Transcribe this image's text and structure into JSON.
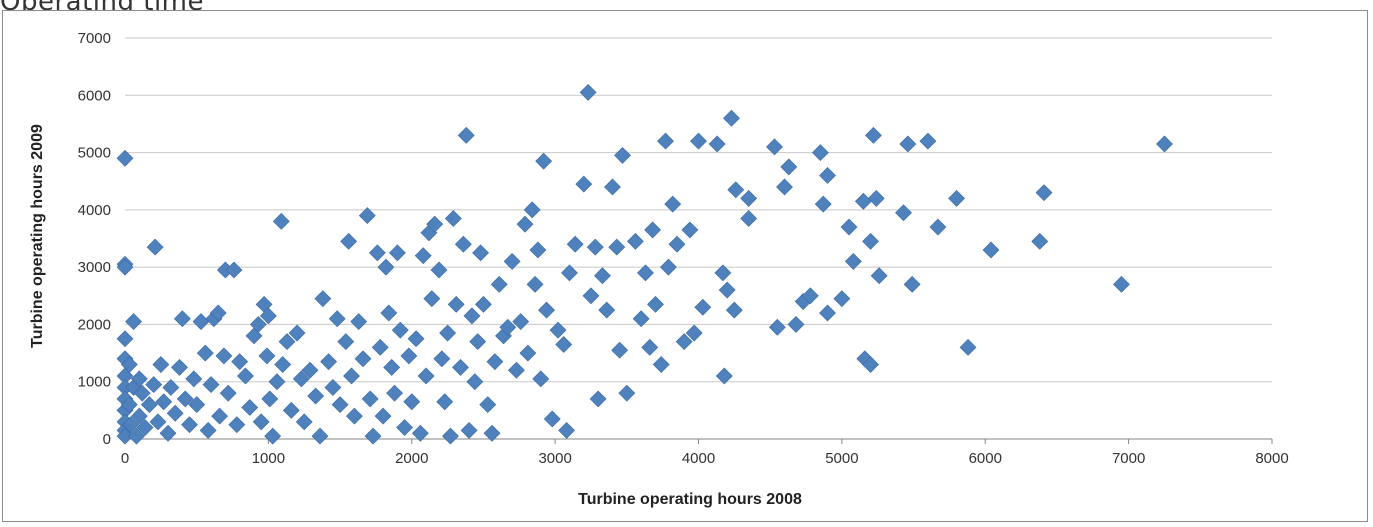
{
  "page": {
    "title": "Operating time"
  },
  "chart_data": {
    "type": "scatter",
    "xlabel": "Turbine operating hours 2008",
    "ylabel": "Turbine operating hours 2009",
    "xlim": [
      0,
      8000
    ],
    "ylim": [
      0,
      7000
    ],
    "x_ticks": [
      "0",
      "1000",
      "2000",
      "3000",
      "4000",
      "5000",
      "6000",
      "7000",
      "8000"
    ],
    "y_ticks": [
      "0",
      "1000",
      "2000",
      "3000",
      "4000",
      "5000",
      "6000",
      "7000"
    ],
    "grid": "horizontal",
    "marker": "diamond",
    "colors": {
      "marker": "#4f81bd",
      "marker_edge": "#3a6aa3",
      "grid": "#c8c8c8",
      "axis": "#868686"
    },
    "points": [
      [
        0,
        4900
      ],
      [
        0,
        3050
      ],
      [
        0,
        3000
      ],
      [
        0,
        1750
      ],
      [
        0,
        1400
      ],
      [
        0,
        1100
      ],
      [
        0,
        900
      ],
      [
        0,
        700
      ],
      [
        0,
        500
      ],
      [
        0,
        300
      ],
      [
        0,
        150
      ],
      [
        0,
        50
      ],
      [
        30,
        1300
      ],
      [
        30,
        600
      ],
      [
        40,
        250
      ],
      [
        60,
        2050
      ],
      [
        60,
        900
      ],
      [
        80,
        50
      ],
      [
        100,
        1050
      ],
      [
        100,
        400
      ],
      [
        120,
        800
      ],
      [
        140,
        200
      ],
      [
        170,
        600
      ],
      [
        200,
        950
      ],
      [
        210,
        3350
      ],
      [
        230,
        300
      ],
      [
        250,
        1300
      ],
      [
        270,
        650
      ],
      [
        300,
        100
      ],
      [
        320,
        900
      ],
      [
        350,
        450
      ],
      [
        380,
        1250
      ],
      [
        400,
        2100
      ],
      [
        420,
        700
      ],
      [
        450,
        250
      ],
      [
        480,
        1050
      ],
      [
        500,
        600
      ],
      [
        530,
        2050
      ],
      [
        560,
        1500
      ],
      [
        580,
        150
      ],
      [
        600,
        950
      ],
      [
        620,
        2100
      ],
      [
        650,
        2200
      ],
      [
        660,
        400
      ],
      [
        690,
        1450
      ],
      [
        700,
        2950
      ],
      [
        720,
        800
      ],
      [
        760,
        2950
      ],
      [
        780,
        250
      ],
      [
        800,
        1350
      ],
      [
        840,
        1100
      ],
      [
        870,
        550
      ],
      [
        900,
        1800
      ],
      [
        930,
        2000
      ],
      [
        950,
        300
      ],
      [
        970,
        2350
      ],
      [
        990,
        1450
      ],
      [
        1000,
        2150
      ],
      [
        1010,
        700
      ],
      [
        1030,
        50
      ],
      [
        1060,
        1000
      ],
      [
        1090,
        3800
      ],
      [
        1100,
        1300
      ],
      [
        1130,
        1700
      ],
      [
        1160,
        500
      ],
      [
        1200,
        1850
      ],
      [
        1230,
        1050
      ],
      [
        1250,
        300
      ],
      [
        1290,
        1200
      ],
      [
        1330,
        750
      ],
      [
        1360,
        50
      ],
      [
        1380,
        2450
      ],
      [
        1420,
        1350
      ],
      [
        1450,
        900
      ],
      [
        1480,
        2100
      ],
      [
        1500,
        600
      ],
      [
        1540,
        1700
      ],
      [
        1560,
        3450
      ],
      [
        1580,
        1100
      ],
      [
        1600,
        400
      ],
      [
        1630,
        2050
      ],
      [
        1660,
        1400
      ],
      [
        1690,
        3900
      ],
      [
        1710,
        700
      ],
      [
        1730,
        50
      ],
      [
        1760,
        3250
      ],
      [
        1780,
        1600
      ],
      [
        1800,
        400
      ],
      [
        1820,
        3000
      ],
      [
        1840,
        2200
      ],
      [
        1860,
        1250
      ],
      [
        1880,
        800
      ],
      [
        1900,
        3250
      ],
      [
        1920,
        1900
      ],
      [
        1950,
        200
      ],
      [
        1980,
        1450
      ],
      [
        2000,
        650
      ],
      [
        2030,
        1750
      ],
      [
        2060,
        100
      ],
      [
        2080,
        3200
      ],
      [
        2100,
        1100
      ],
      [
        2120,
        3600
      ],
      [
        2140,
        2450
      ],
      [
        2160,
        3750
      ],
      [
        2190,
        2950
      ],
      [
        2210,
        1400
      ],
      [
        2230,
        650
      ],
      [
        2250,
        1850
      ],
      [
        2270,
        50
      ],
      [
        2290,
        3850
      ],
      [
        2310,
        2350
      ],
      [
        2340,
        1250
      ],
      [
        2360,
        3400
      ],
      [
        2380,
        5300
      ],
      [
        2400,
        150
      ],
      [
        2420,
        2150
      ],
      [
        2440,
        1000
      ],
      [
        2460,
        1700
      ],
      [
        2480,
        3250
      ],
      [
        2500,
        2350
      ],
      [
        2530,
        600
      ],
      [
        2560,
        100
      ],
      [
        2580,
        1350
      ],
      [
        2610,
        2700
      ],
      [
        2640,
        1800
      ],
      [
        2670,
        1950
      ],
      [
        2700,
        3100
      ],
      [
        2730,
        1200
      ],
      [
        2760,
        2050
      ],
      [
        2790,
        3750
      ],
      [
        2810,
        1500
      ],
      [
        2840,
        4000
      ],
      [
        2860,
        2700
      ],
      [
        2880,
        3300
      ],
      [
        2900,
        1050
      ],
      [
        2920,
        4850
      ],
      [
        2940,
        2250
      ],
      [
        2980,
        350
      ],
      [
        3020,
        1900
      ],
      [
        3060,
        1650
      ],
      [
        3080,
        150
      ],
      [
        3100,
        2900
      ],
      [
        3140,
        3400
      ],
      [
        3200,
        4450
      ],
      [
        3230,
        6050
      ],
      [
        3250,
        2500
      ],
      [
        3280,
        3350
      ],
      [
        3300,
        700
      ],
      [
        3330,
        2850
      ],
      [
        3360,
        2250
      ],
      [
        3400,
        4400
      ],
      [
        3430,
        3350
      ],
      [
        3450,
        1550
      ],
      [
        3470,
        4950
      ],
      [
        3500,
        800
      ],
      [
        3560,
        3450
      ],
      [
        3600,
        2100
      ],
      [
        3630,
        2900
      ],
      [
        3660,
        1600
      ],
      [
        3680,
        3650
      ],
      [
        3700,
        2350
      ],
      [
        3740,
        1300
      ],
      [
        3770,
        5200
      ],
      [
        3790,
        3000
      ],
      [
        3820,
        4100
      ],
      [
        3850,
        3400
      ],
      [
        3900,
        1700
      ],
      [
        3940,
        3650
      ],
      [
        3970,
        1850
      ],
      [
        4000,
        5200
      ],
      [
        4030,
        2300
      ],
      [
        4130,
        5150
      ],
      [
        4170,
        2900
      ],
      [
        4180,
        1100
      ],
      [
        4200,
        2600
      ],
      [
        4230,
        5600
      ],
      [
        4250,
        2250
      ],
      [
        4260,
        4350
      ],
      [
        4350,
        4200
      ],
      [
        4350,
        3850
      ],
      [
        4530,
        5100
      ],
      [
        4550,
        1950
      ],
      [
        4600,
        4400
      ],
      [
        4630,
        4750
      ],
      [
        4680,
        2000
      ],
      [
        4730,
        2400
      ],
      [
        4780,
        2500
      ],
      [
        4850,
        5000
      ],
      [
        4870,
        4100
      ],
      [
        4900,
        4600
      ],
      [
        4900,
        2200
      ],
      [
        5000,
        2450
      ],
      [
        5050,
        3700
      ],
      [
        5080,
        3100
      ],
      [
        5150,
        4150
      ],
      [
        5160,
        1400
      ],
      [
        5200,
        1300
      ],
      [
        5200,
        3450
      ],
      [
        5220,
        5300
      ],
      [
        5240,
        4200
      ],
      [
        5260,
        2850
      ],
      [
        5430,
        3950
      ],
      [
        5460,
        5150
      ],
      [
        5490,
        2700
      ],
      [
        5600,
        5200
      ],
      [
        5670,
        3700
      ],
      [
        5800,
        4200
      ],
      [
        5880,
        1600
      ],
      [
        6040,
        3300
      ],
      [
        6380,
        3450
      ],
      [
        6410,
        4300
      ],
      [
        6950,
        2700
      ],
      [
        7250,
        5150
      ]
    ]
  }
}
